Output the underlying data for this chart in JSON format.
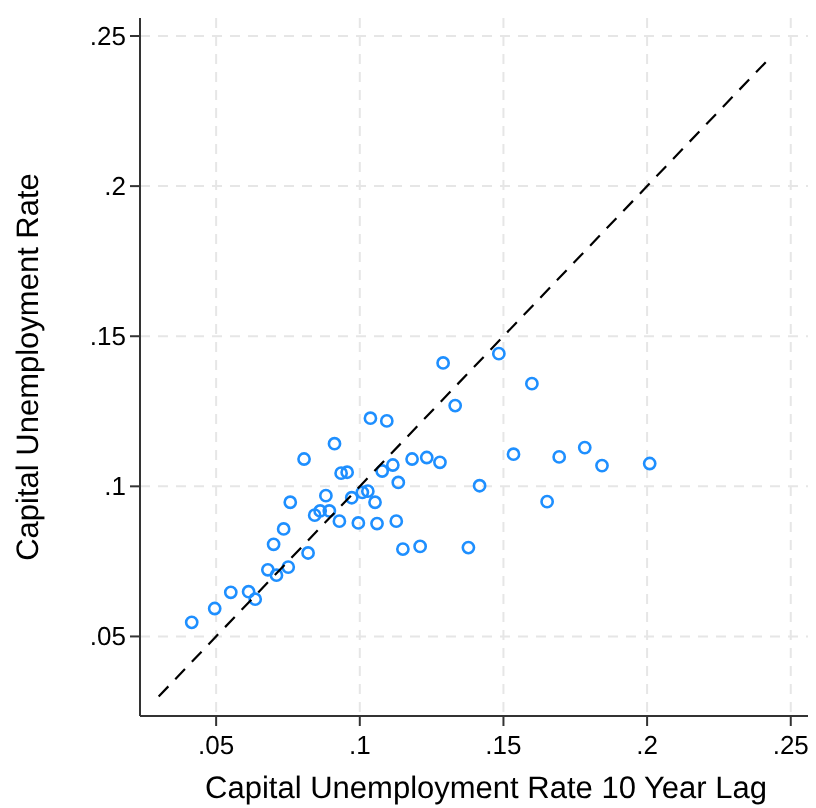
{
  "chart_data": {
    "type": "scatter",
    "xlabel": "Capital Unemployment Rate 10 Year Lag",
    "ylabel": "Capital Unemployment Rate",
    "xlim": [
      0.0235,
      0.256
    ],
    "ylim": [
      0.0235,
      0.256
    ],
    "xticks": [
      {
        "value": 0.05,
        "label": ".05"
      },
      {
        "value": 0.1,
        "label": ".1"
      },
      {
        "value": 0.15,
        "label": ".15"
      },
      {
        "value": 0.2,
        "label": ".2"
      },
      {
        "value": 0.25,
        "label": ".25"
      }
    ],
    "yticks": [
      {
        "value": 0.05,
        "label": ".05"
      },
      {
        "value": 0.1,
        "label": ".1"
      },
      {
        "value": 0.15,
        "label": ".15"
      },
      {
        "value": 0.2,
        "label": ".2"
      },
      {
        "value": 0.25,
        "label": ".25"
      }
    ],
    "grid": true,
    "series": [
      {
        "color": "#1e8fff",
        "marker": "circle",
        "x": [
          0.0415,
          0.0495,
          0.0551,
          0.0613,
          0.0636,
          0.068,
          0.071,
          0.07,
          0.0735,
          0.0751,
          0.0758,
          0.0806,
          0.082,
          0.0843,
          0.0862,
          0.0882,
          0.0894,
          0.0912,
          0.0929,
          0.0935,
          0.0956,
          0.0972,
          0.0995,
          0.1009,
          0.1028,
          0.1037,
          0.1053,
          0.106,
          0.1078,
          0.1094,
          0.1115,
          0.1127,
          0.1134,
          0.115,
          0.1182,
          0.121,
          0.1233,
          0.1279,
          0.129,
          0.1332,
          0.1378,
          0.1417,
          0.1484,
          0.1535,
          0.1599,
          0.1652,
          0.1694,
          0.1783,
          0.1843,
          0.2009
        ],
        "values": [
          0.0547,
          0.0593,
          0.0647,
          0.0649,
          0.0624,
          0.0722,
          0.0704,
          0.0807,
          0.0858,
          0.0731,
          0.0947,
          0.1091,
          0.0778,
          0.0904,
          0.0918,
          0.0969,
          0.0918,
          0.1142,
          0.0884,
          0.1044,
          0.1047,
          0.0962,
          0.0878,
          0.098,
          0.0984,
          0.1227,
          0.0947,
          0.0876,
          0.1051,
          0.1218,
          0.1071,
          0.0884,
          0.1013,
          0.0791,
          0.1091,
          0.08,
          0.1096,
          0.108,
          0.1411,
          0.1269,
          0.0796,
          0.1002,
          0.1442,
          0.1107,
          0.1342,
          0.0949,
          0.1098,
          0.1129,
          0.1069,
          0.1076
        ]
      },
      {
        "type": "line",
        "color": "#000000",
        "line_style": "dashed",
        "x": [
          0.03,
          0.242
        ],
        "values": [
          0.03,
          0.242
        ]
      }
    ]
  }
}
